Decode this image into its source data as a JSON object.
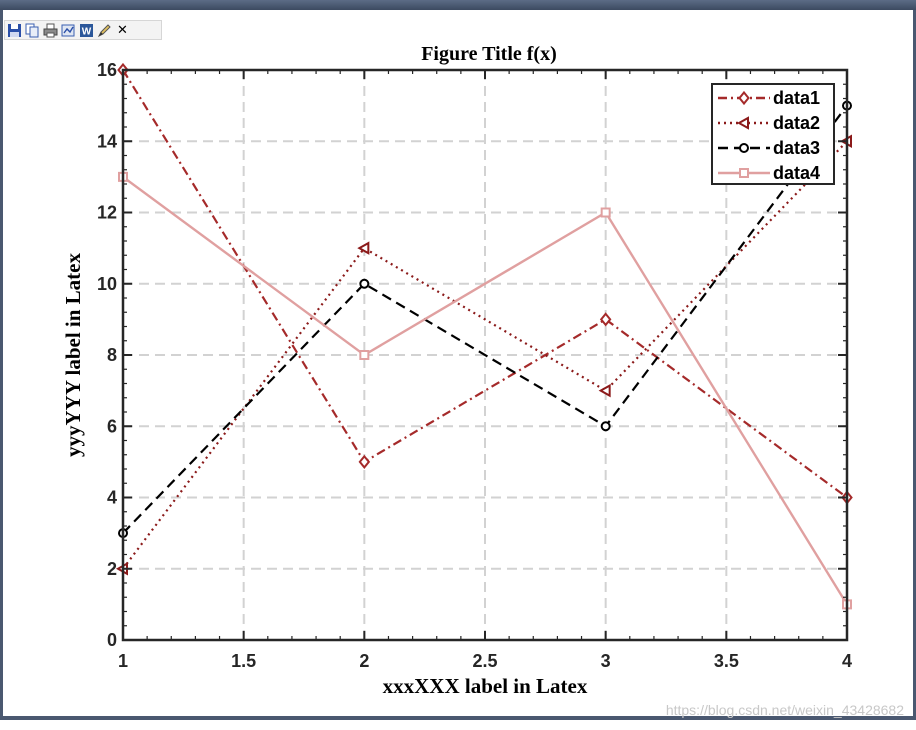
{
  "toolbar": {
    "icons": [
      "save-icon",
      "copy-icon",
      "print-icon",
      "export-icon",
      "word-icon",
      "edit-icon",
      "close-icon"
    ],
    "close_label": "✕"
  },
  "watermark": "https://blog.csdn.net/weixin_43428682",
  "chart_data": {
    "type": "line",
    "title": "Figure Title f(x)",
    "xlabel": "xxxXXX label in Latex",
    "ylabel": "yyyYYY label in Latex",
    "x": [
      1,
      2,
      3,
      4
    ],
    "xlim": [
      1,
      4
    ],
    "ylim": [
      0,
      16
    ],
    "xticks": [
      1,
      1.5,
      2,
      2.5,
      3,
      3.5,
      4
    ],
    "xtick_labels": [
      "1",
      "1.5",
      "2",
      "2.5",
      "3",
      "3.5",
      "4"
    ],
    "yticks": [
      0,
      2,
      4,
      6,
      8,
      10,
      12,
      14,
      16
    ],
    "ytick_labels": [
      "0",
      "2",
      "4",
      "6",
      "8",
      "10",
      "12",
      "14",
      "16"
    ],
    "grid": true,
    "legend_position": "top-right",
    "series": [
      {
        "name": "data1",
        "values": [
          16,
          5,
          9,
          4
        ],
        "color": "#a52a2a",
        "dash": "dashdot",
        "marker": "diamond"
      },
      {
        "name": "data2",
        "values": [
          2,
          11,
          7,
          14
        ],
        "color": "#8b1a1a",
        "dash": "dotted",
        "marker": "triangle-left"
      },
      {
        "name": "data3",
        "values": [
          3,
          10,
          6,
          15
        ],
        "color": "#000000",
        "dash": "dashed",
        "marker": "circle"
      },
      {
        "name": "data4",
        "values": [
          13,
          8,
          12,
          1
        ],
        "color": "#e0a0a0",
        "dash": "solid",
        "marker": "square"
      }
    ]
  }
}
